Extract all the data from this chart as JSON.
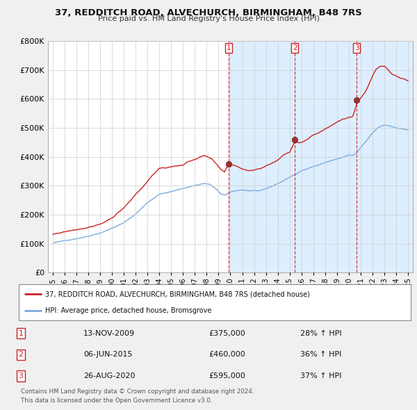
{
  "title": "37, REDDITCH ROAD, ALVECHURCH, BIRMINGHAM, B48 7RS",
  "subtitle": "Price paid vs. HM Land Registry's House Price Index (HPI)",
  "legend_line1": "37, REDDITCH ROAD, ALVECHURCH, BIRMINGHAM, B48 7RS (detached house)",
  "legend_line2": "HPI: Average price, detached house, Bromsgrove",
  "footer_line1": "Contains HM Land Registry data © Crown copyright and database right 2024.",
  "footer_line2": "This data is licensed under the Open Government Licence v3.0.",
  "transactions": [
    {
      "num": 1,
      "date": "13-NOV-2009",
      "price": 375000,
      "pct": "28%",
      "dir": "↑",
      "label": "HPI"
    },
    {
      "num": 2,
      "date": "06-JUN-2015",
      "price": 460000,
      "pct": "36%",
      "dir": "↑",
      "label": "HPI"
    },
    {
      "num": 3,
      "date": "26-AUG-2020",
      "price": 595000,
      "pct": "37%",
      "dir": "↑",
      "label": "HPI"
    }
  ],
  "transaction_dates_decimal": [
    2009.866,
    2015.431,
    2020.654
  ],
  "transaction_prices": [
    375000,
    460000,
    595000
  ],
  "hpi_color": "#7aaadd",
  "price_color": "#cc2222",
  "dot_color": "#993333",
  "shading_color": "#ddeeff",
  "vline_color": "#cc2222",
  "background_color": "#f0f0f0",
  "plot_bg_color": "#ffffff",
  "grid_color": "#cccccc",
  "ylim": [
    0,
    800000
  ],
  "xlim_start": 1994.6,
  "xlim_end": 2025.4,
  "yticks": [
    0,
    100000,
    200000,
    300000,
    400000,
    500000,
    600000,
    700000,
    800000
  ],
  "xtick_years": [
    1995,
    1996,
    1997,
    1998,
    1999,
    2000,
    2001,
    2002,
    2003,
    2004,
    2005,
    2006,
    2007,
    2008,
    2009,
    2010,
    2011,
    2012,
    2013,
    2014,
    2015,
    2016,
    2017,
    2018,
    2019,
    2020,
    2021,
    2022,
    2023,
    2024,
    2025
  ]
}
